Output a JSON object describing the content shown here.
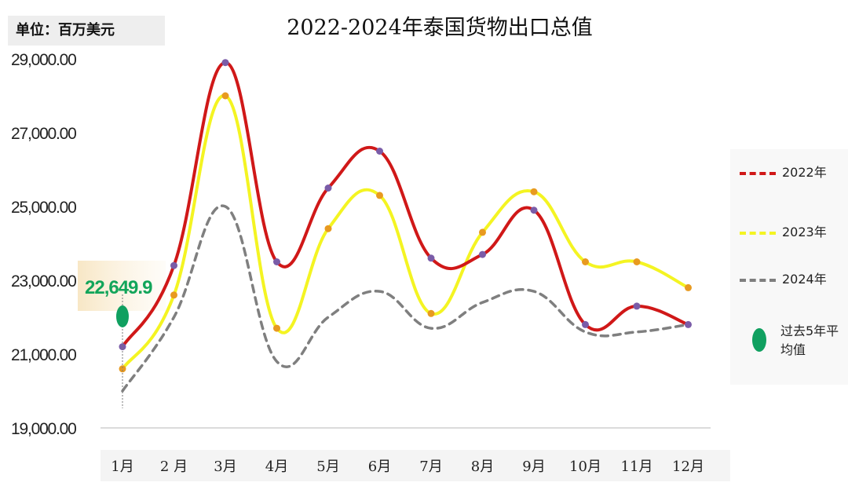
{
  "unit_label": "单位：百万美元",
  "chart_data": {
    "type": "line",
    "title": "2022-2024年泰国货物出口总值",
    "xlabel": "",
    "ylabel": "",
    "ylim": [
      19000,
      29500
    ],
    "y_ticks": [
      29000,
      27000,
      25000,
      23000,
      21000,
      19000
    ],
    "y_tick_labels": [
      "29,000.00",
      "27,000.00",
      "25,000.00",
      "23,000.00",
      "21,000.00",
      "19,000.00"
    ],
    "categories": [
      "1月",
      "2 月",
      "3月",
      "4月",
      "5月",
      "6月",
      "7月",
      "8月",
      "9月",
      "10月",
      "11月",
      "12月"
    ],
    "series": [
      {
        "name": "2022年",
        "color": "#d01818",
        "marker": "#7a5ca8",
        "values": [
          21200,
          23400,
          28900,
          23500,
          25500,
          26500,
          23600,
          23700,
          24900,
          21800,
          22300,
          21800
        ]
      },
      {
        "name": "2023年",
        "color": "#f4f422",
        "marker": "#e89a20",
        "values": [
          20600,
          22600,
          28000,
          21700,
          24400,
          25300,
          22100,
          24300,
          25400,
          23500,
          23500,
          22800
        ]
      },
      {
        "name": "2024年",
        "color": "#7f7f7f",
        "dashed": true,
        "values": [
          20000,
          22000,
          25000,
          20800,
          22000,
          22700,
          21700,
          22400,
          22700,
          21600,
          21600,
          21800
        ]
      }
    ],
    "average": {
      "label": "过去5年平均值",
      "value": 22649.9,
      "value_label": "22,649.9",
      "month_index": 0,
      "color": "#10a060"
    },
    "grid": false,
    "legend_position": "right"
  }
}
